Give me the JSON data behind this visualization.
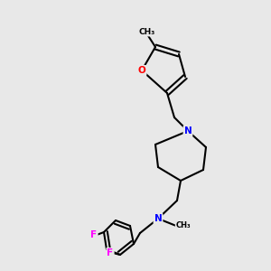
{
  "background_color": "#e8e8e8",
  "bond_color": "#000000",
  "atom_colors": {
    "N": "#0000ff",
    "O": "#ff0000",
    "F": "#ff00ff",
    "C": "#000000"
  },
  "title": "",
  "figsize": [
    3.0,
    3.0
  ],
  "dpi": 100
}
